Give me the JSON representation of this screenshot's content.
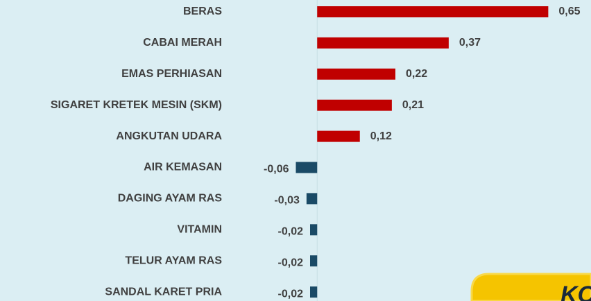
{
  "chart_data": {
    "type": "bar",
    "orientation": "horizontal",
    "categories": [
      "BERAS",
      "CABAI MERAH",
      "EMAS PERHIASAN",
      "SIGARET KRETEK MESIN (SKM)",
      "ANGKUTAN UDARA",
      "AIR KEMASAN",
      "DAGING AYAM RAS",
      "VITAMIN",
      "TELUR AYAM RAS",
      "SANDAL KARET PRIA"
    ],
    "values": [
      0.65,
      0.37,
      0.22,
      0.21,
      0.12,
      -0.06,
      -0.03,
      -0.02,
      -0.02,
      -0.02
    ],
    "value_labels": [
      "0,65",
      "0,37",
      "0,22",
      "0,21",
      "0,12",
      "-0,06",
      "-0,03",
      "-0,02",
      "-0,02",
      "-0,02"
    ],
    "positive_color": "#c00000",
    "negative_color": "#1a4a66",
    "xlim": [
      -0.1,
      0.7
    ],
    "annotation": "KO"
  }
}
